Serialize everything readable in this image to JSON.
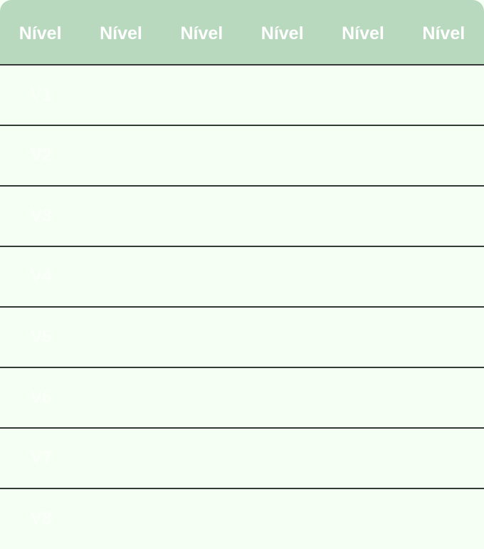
{
  "header": [
    "Nível",
    "Nível",
    "Nível",
    "Nível",
    "Nível",
    "Nível"
  ],
  "rows": [
    "V1",
    "V2",
    "V3",
    "V4",
    "V5",
    "V6",
    "V7",
    "V8"
  ],
  "colors": {
    "header_bg": "#b9d9bf",
    "body_bg": "#f5fff3",
    "divider": "#333a36",
    "text": "#ffffff"
  }
}
